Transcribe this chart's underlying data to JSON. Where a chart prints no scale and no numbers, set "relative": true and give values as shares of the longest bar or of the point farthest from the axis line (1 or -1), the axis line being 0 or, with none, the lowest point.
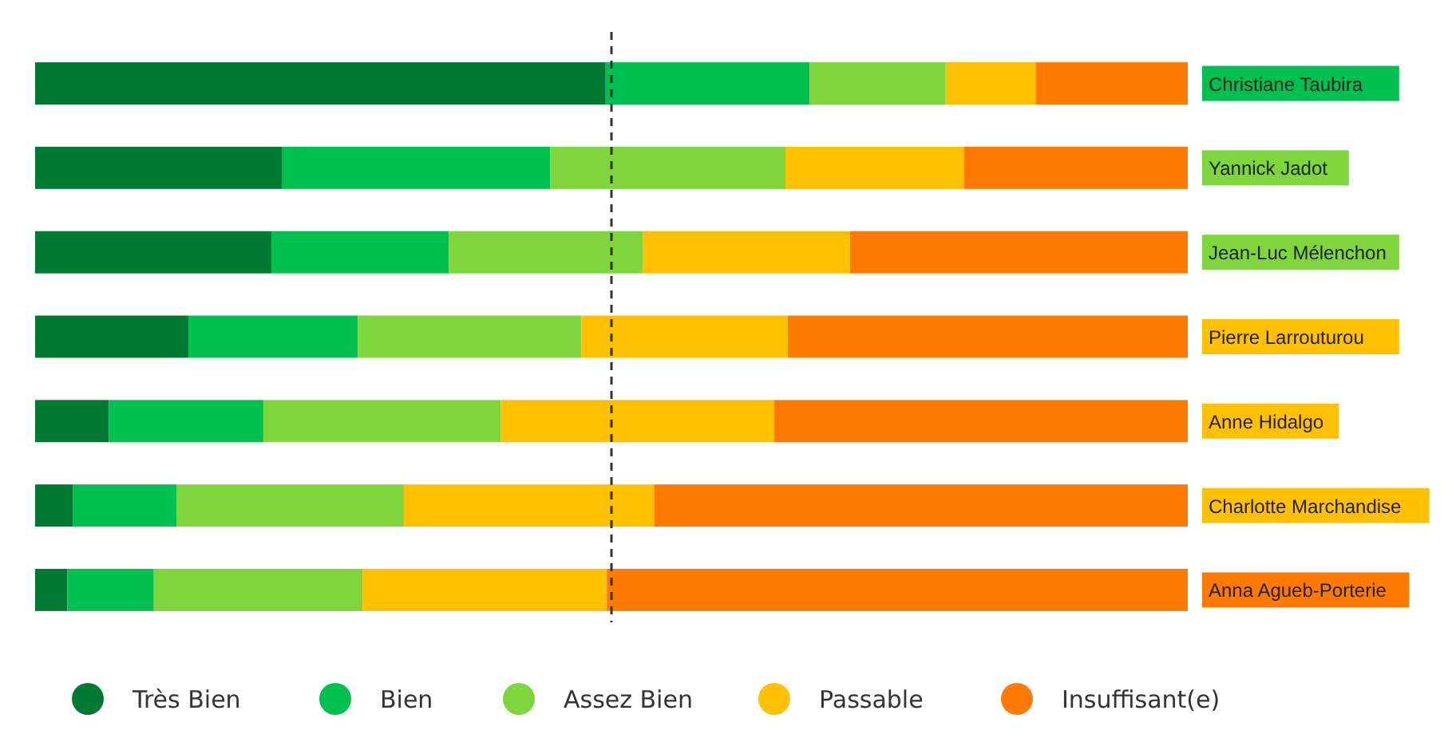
{
  "chart_data": {
    "type": "bar",
    "orientation": "horizontal",
    "stacked": true,
    "relative": true,
    "legend": "bottom",
    "grid": false,
    "categories": [
      "Christiane Taubira",
      "Yannick Jadot",
      "Jean-Luc Mélenchon",
      "Pierre Larrouturou",
      "Anne Hidalgo",
      "Charlotte Marchandise",
      "Anna Agueb-Porterie"
    ],
    "series": [
      {
        "name": "Très Bien",
        "color": "#007a33",
        "values": [
          0.495,
          0.214,
          0.205,
          0.133,
          0.064,
          0.033,
          0.028
        ]
      },
      {
        "name": "Bien",
        "color": "#00c050",
        "values": [
          0.177,
          0.233,
          0.154,
          0.147,
          0.134,
          0.09,
          0.075
        ]
      },
      {
        "name": "Assez Bien",
        "color": "#7ed63c",
        "values": [
          0.118,
          0.204,
          0.168,
          0.194,
          0.206,
          0.197,
          0.181
        ]
      },
      {
        "name": "Passable",
        "color": "#ffc000",
        "values": [
          0.078,
          0.155,
          0.18,
          0.179,
          0.237,
          0.217,
          0.212
        ]
      },
      {
        "name": "Insuffisant(e)",
        "color": "#ff7a00",
        "values": [
          0.132,
          0.194,
          0.293,
          0.347,
          0.359,
          0.463,
          0.504
        ]
      }
    ],
    "ref_lines": [
      {
        "axis": "x",
        "value": 0.5,
        "line_style": "dashed",
        "color": "#333333"
      }
    ]
  }
}
